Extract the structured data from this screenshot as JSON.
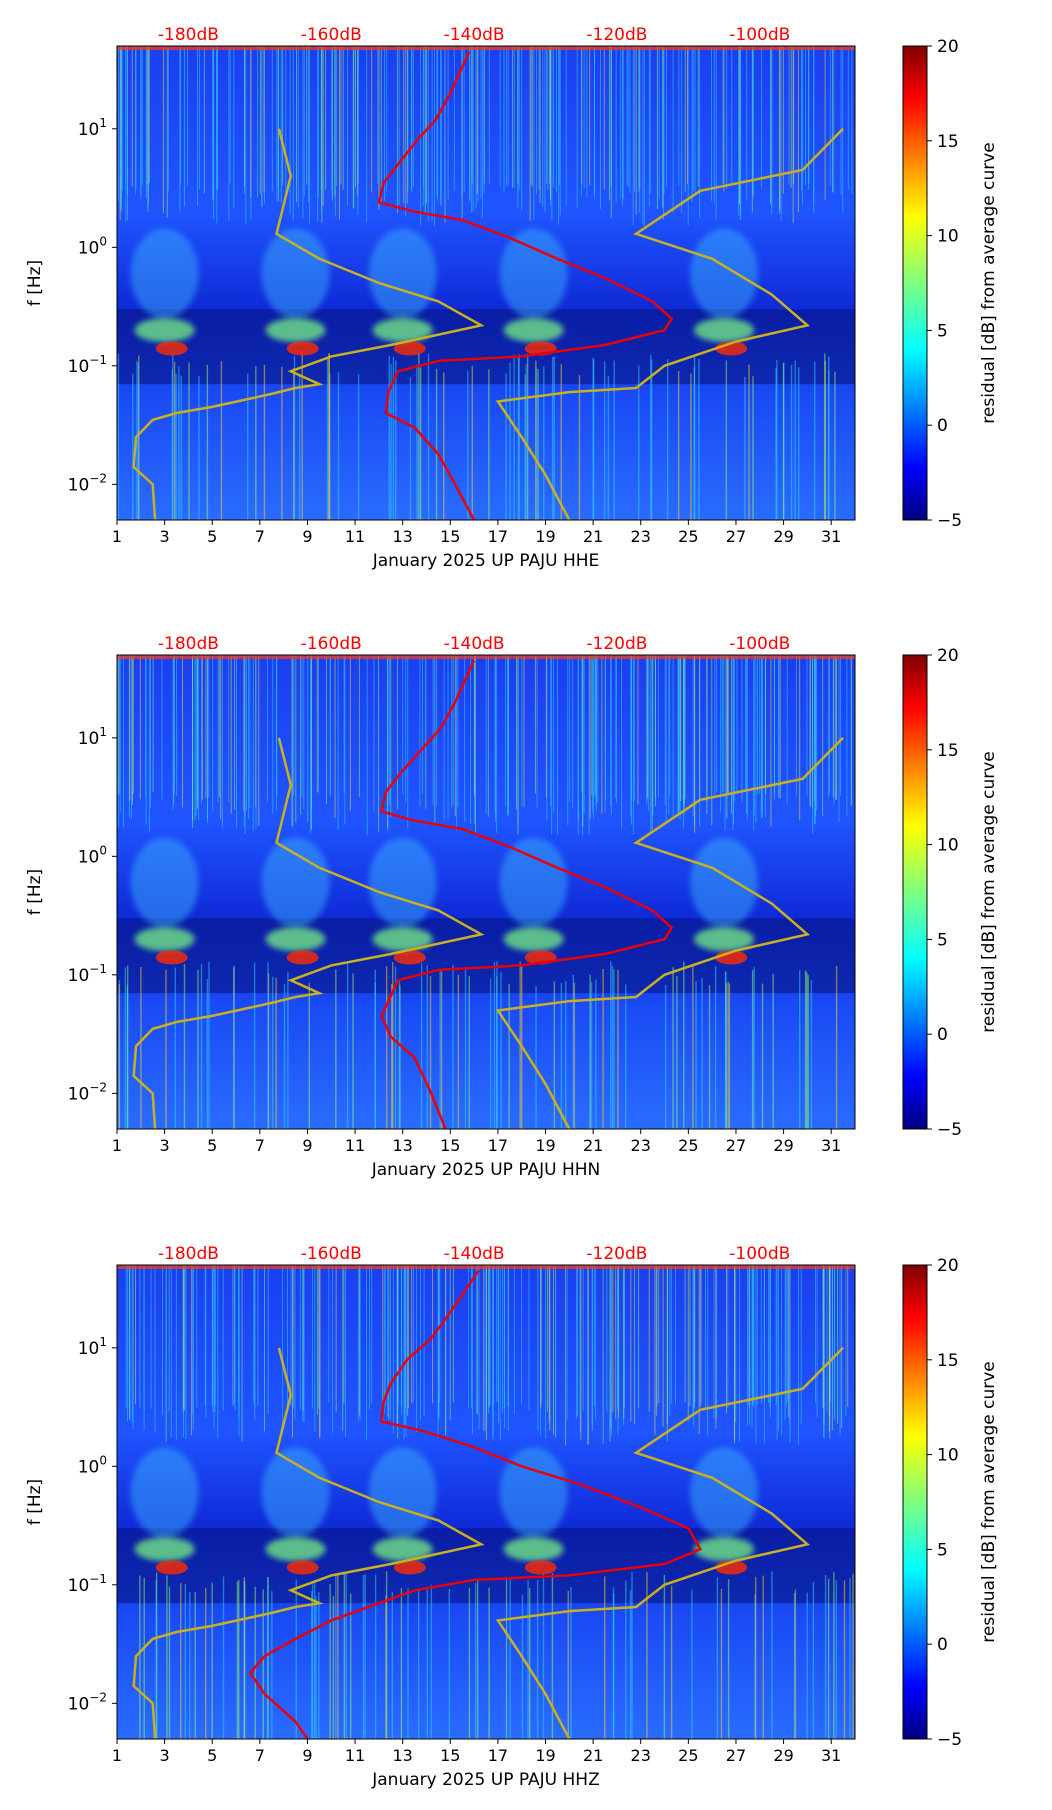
{
  "chart_data": [
    {
      "type": "heatmap",
      "title": "",
      "channel": "HHE",
      "xlabel": "January 2025 UP PAJU  HHE",
      "ylabel": "f [Hz]",
      "x_ticks": [
        "1",
        "3",
        "5",
        "7",
        "9",
        "11",
        "13",
        "15",
        "17",
        "19",
        "21",
        "23",
        "25",
        "27",
        "29",
        "31"
      ],
      "xlim": [
        1,
        32
      ],
      "ylim": [
        0.005,
        50
      ],
      "y_ticks": [
        {
          "base": "10",
          "exp": "1",
          "value": 10
        },
        {
          "base": "10",
          "exp": "0",
          "value": 1
        },
        {
          "base": "10",
          "exp": "−1",
          "value": 0.1
        },
        {
          "base": "10",
          "exp": "−2",
          "value": 0.01
        }
      ],
      "top_labels": [
        "-180dB",
        "-160dB",
        "-140dB",
        "-120dB",
        "-100dB"
      ],
      "top_label_x": [
        4,
        10,
        16,
        22,
        28
      ],
      "colorbar": {
        "label": "residual [dB] from average curve",
        "ticks": [
          "20",
          "15",
          "10",
          "5",
          "0",
          "−5"
        ],
        "min": -5,
        "max": 20
      },
      "red_curve": [
        [
          15.8,
          45
        ],
        [
          15.4,
          30
        ],
        [
          15.0,
          20
        ],
        [
          14.4,
          12
        ],
        [
          13.6,
          8
        ],
        [
          12.8,
          5
        ],
        [
          12.2,
          3.5
        ],
        [
          12.0,
          2.4
        ],
        [
          13.5,
          2.0
        ],
        [
          15.5,
          1.7
        ],
        [
          17.5,
          1.2
        ],
        [
          19.5,
          0.8
        ],
        [
          21.5,
          0.55
        ],
        [
          23.5,
          0.35
        ],
        [
          24.3,
          0.25
        ],
        [
          24.0,
          0.2
        ],
        [
          21.5,
          0.15
        ],
        [
          18,
          0.12
        ],
        [
          14.5,
          0.11
        ],
        [
          12.8,
          0.09
        ],
        [
          12.4,
          0.06
        ],
        [
          12.3,
          0.04
        ],
        [
          13.5,
          0.03
        ],
        [
          14.5,
          0.018
        ],
        [
          15.2,
          0.01
        ],
        [
          16,
          0.005
        ]
      ],
      "yellow_curve_low": [
        [
          7.8,
          10
        ],
        [
          8.3,
          4
        ],
        [
          7.7,
          1.3
        ],
        [
          9.5,
          0.8
        ],
        [
          12,
          0.5
        ],
        [
          14.5,
          0.35
        ],
        [
          16.3,
          0.22
        ],
        [
          12.5,
          0.15
        ],
        [
          10,
          0.12
        ],
        [
          8.3,
          0.09
        ],
        [
          9.5,
          0.07
        ],
        [
          8.5,
          0.065
        ],
        [
          7.5,
          0.058
        ],
        [
          5,
          0.045
        ],
        [
          3.5,
          0.04
        ],
        [
          2.5,
          0.035
        ],
        [
          1.8,
          0.025
        ],
        [
          1.7,
          0.014
        ],
        [
          2.5,
          0.01
        ],
        [
          2.6,
          0.005
        ]
      ],
      "yellow_curve_high": [
        [
          31.5,
          10
        ],
        [
          29.8,
          4.5
        ],
        [
          25.5,
          3
        ],
        [
          22.8,
          1.3
        ],
        [
          26,
          0.8
        ],
        [
          28.5,
          0.4
        ],
        [
          30,
          0.22
        ],
        [
          27,
          0.16
        ],
        [
          24,
          0.1
        ],
        [
          22.8,
          0.065
        ],
        [
          20,
          0.06
        ],
        [
          17,
          0.05
        ],
        [
          18,
          0.025
        ],
        [
          19,
          0.012
        ],
        [
          20,
          0.005
        ]
      ]
    },
    {
      "type": "heatmap",
      "title": "",
      "channel": "HHN",
      "xlabel": "January 2025 UP PAJU  HHN",
      "ylabel": "f [Hz]",
      "x_ticks": [
        "1",
        "3",
        "5",
        "7",
        "9",
        "11",
        "13",
        "15",
        "17",
        "19",
        "21",
        "23",
        "25",
        "27",
        "29",
        "31"
      ],
      "xlim": [
        1,
        32
      ],
      "ylim": [
        0.005,
        50
      ],
      "y_ticks": [
        {
          "base": "10",
          "exp": "1",
          "value": 10
        },
        {
          "base": "10",
          "exp": "0",
          "value": 1
        },
        {
          "base": "10",
          "exp": "−1",
          "value": 0.1
        },
        {
          "base": "10",
          "exp": "−2",
          "value": 0.01
        }
      ],
      "top_labels": [
        "-180dB",
        "-160dB",
        "-140dB",
        "-120dB",
        "-100dB"
      ],
      "top_label_x": [
        4,
        10,
        16,
        22,
        28
      ],
      "colorbar": {
        "label": "residual [dB] from average curve",
        "ticks": [
          "20",
          "15",
          "10",
          "5",
          "0",
          "−5"
        ],
        "min": -5,
        "max": 20
      },
      "red_curve": [
        [
          16,
          45
        ],
        [
          15.6,
          30
        ],
        [
          15.2,
          20
        ],
        [
          14.6,
          12
        ],
        [
          13.8,
          8
        ],
        [
          12.9,
          5
        ],
        [
          12.3,
          3.5
        ],
        [
          12.1,
          2.4
        ],
        [
          13.5,
          2.0
        ],
        [
          15.5,
          1.7
        ],
        [
          17.5,
          1.2
        ],
        [
          19.5,
          0.8
        ],
        [
          21.5,
          0.55
        ],
        [
          23.5,
          0.35
        ],
        [
          24.3,
          0.25
        ],
        [
          24.0,
          0.2
        ],
        [
          21.5,
          0.15
        ],
        [
          18,
          0.12
        ],
        [
          14.5,
          0.11
        ],
        [
          12.8,
          0.09
        ],
        [
          12.4,
          0.06
        ],
        [
          12.1,
          0.045
        ],
        [
          12.5,
          0.03
        ],
        [
          13.5,
          0.02
        ],
        [
          14.2,
          0.01
        ],
        [
          14.8,
          0.005
        ]
      ],
      "yellow_curve_low": [
        [
          7.8,
          10
        ],
        [
          8.3,
          4
        ],
        [
          7.7,
          1.3
        ],
        [
          9.5,
          0.8
        ],
        [
          12,
          0.5
        ],
        [
          14.5,
          0.35
        ],
        [
          16.3,
          0.22
        ],
        [
          12.5,
          0.15
        ],
        [
          10,
          0.12
        ],
        [
          8.3,
          0.09
        ],
        [
          9.5,
          0.07
        ],
        [
          8.5,
          0.065
        ],
        [
          7.5,
          0.058
        ],
        [
          5,
          0.045
        ],
        [
          3.5,
          0.04
        ],
        [
          2.5,
          0.035
        ],
        [
          1.8,
          0.025
        ],
        [
          1.7,
          0.014
        ],
        [
          2.5,
          0.01
        ],
        [
          2.6,
          0.005
        ]
      ],
      "yellow_curve_high": [
        [
          31.5,
          10
        ],
        [
          29.8,
          4.5
        ],
        [
          25.5,
          3
        ],
        [
          22.8,
          1.3
        ],
        [
          26,
          0.8
        ],
        [
          28.5,
          0.4
        ],
        [
          30,
          0.22
        ],
        [
          27,
          0.16
        ],
        [
          24,
          0.1
        ],
        [
          22.8,
          0.065
        ],
        [
          20,
          0.06
        ],
        [
          17,
          0.05
        ],
        [
          18,
          0.025
        ],
        [
          19,
          0.012
        ],
        [
          20,
          0.005
        ]
      ]
    },
    {
      "type": "heatmap",
      "title": "",
      "channel": "HHZ",
      "xlabel": "January 2025 UP PAJU  HHZ",
      "ylabel": "f [Hz]",
      "x_ticks": [
        "1",
        "3",
        "5",
        "7",
        "9",
        "11",
        "13",
        "15",
        "17",
        "19",
        "21",
        "23",
        "25",
        "27",
        "29",
        "31"
      ],
      "xlim": [
        1,
        32
      ],
      "ylim": [
        0.005,
        50
      ],
      "y_ticks": [
        {
          "base": "10",
          "exp": "1",
          "value": 10
        },
        {
          "base": "10",
          "exp": "0",
          "value": 1
        },
        {
          "base": "10",
          "exp": "−1",
          "value": 0.1
        },
        {
          "base": "10",
          "exp": "−2",
          "value": 0.01
        }
      ],
      "top_labels": [
        "-180dB",
        "-160dB",
        "-140dB",
        "-120dB",
        "-100dB"
      ],
      "top_label_x": [
        4,
        10,
        16,
        22,
        28
      ],
      "colorbar": {
        "label": "residual [dB] from average curve",
        "ticks": [
          "20",
          "15",
          "10",
          "5",
          "0",
          "−5"
        ],
        "min": -5,
        "max": 20
      },
      "red_curve": [
        [
          16.2,
          45
        ],
        [
          15.6,
          30
        ],
        [
          15,
          20
        ],
        [
          14.2,
          12
        ],
        [
          13.2,
          8
        ],
        [
          12.5,
          5
        ],
        [
          12.2,
          3.5
        ],
        [
          12.1,
          2.4
        ],
        [
          13.8,
          2.0
        ],
        [
          15.8,
          1.5
        ],
        [
          18,
          1.0
        ],
        [
          20.5,
          0.7
        ],
        [
          23,
          0.45
        ],
        [
          25,
          0.3
        ],
        [
          25.5,
          0.2
        ],
        [
          24,
          0.15
        ],
        [
          20,
          0.12
        ],
        [
          16,
          0.11
        ],
        [
          13.5,
          0.09
        ],
        [
          12,
          0.07
        ],
        [
          10,
          0.05
        ],
        [
          8.5,
          0.035
        ],
        [
          7.2,
          0.025
        ],
        [
          6.6,
          0.018
        ],
        [
          7.2,
          0.012
        ],
        [
          8.5,
          0.007
        ],
        [
          9,
          0.005
        ]
      ],
      "yellow_curve_low": [
        [
          7.8,
          10
        ],
        [
          8.3,
          4
        ],
        [
          7.7,
          1.3
        ],
        [
          9.5,
          0.8
        ],
        [
          12,
          0.5
        ],
        [
          14.5,
          0.35
        ],
        [
          16.3,
          0.22
        ],
        [
          12.5,
          0.15
        ],
        [
          10,
          0.12
        ],
        [
          8.3,
          0.09
        ],
        [
          9.5,
          0.07
        ],
        [
          8.5,
          0.065
        ],
        [
          7.5,
          0.058
        ],
        [
          5,
          0.045
        ],
        [
          3.5,
          0.04
        ],
        [
          2.5,
          0.035
        ],
        [
          1.8,
          0.025
        ],
        [
          1.7,
          0.014
        ],
        [
          2.5,
          0.01
        ],
        [
          2.6,
          0.005
        ]
      ],
      "yellow_curve_high": [
        [
          31.5,
          10
        ],
        [
          29.8,
          4.5
        ],
        [
          25.5,
          3
        ],
        [
          22.8,
          1.3
        ],
        [
          26,
          0.8
        ],
        [
          28.5,
          0.4
        ],
        [
          30,
          0.22
        ],
        [
          27,
          0.16
        ],
        [
          24,
          0.1
        ],
        [
          22.8,
          0.065
        ],
        [
          20,
          0.06
        ],
        [
          17,
          0.05
        ],
        [
          18,
          0.025
        ],
        [
          19,
          0.012
        ],
        [
          20,
          0.005
        ]
      ]
    }
  ],
  "colors": {
    "top_label": "#ff0000",
    "red_curve": "#e8000b",
    "yellow_curve": "#c8b020",
    "background_field": "#1535e8"
  }
}
